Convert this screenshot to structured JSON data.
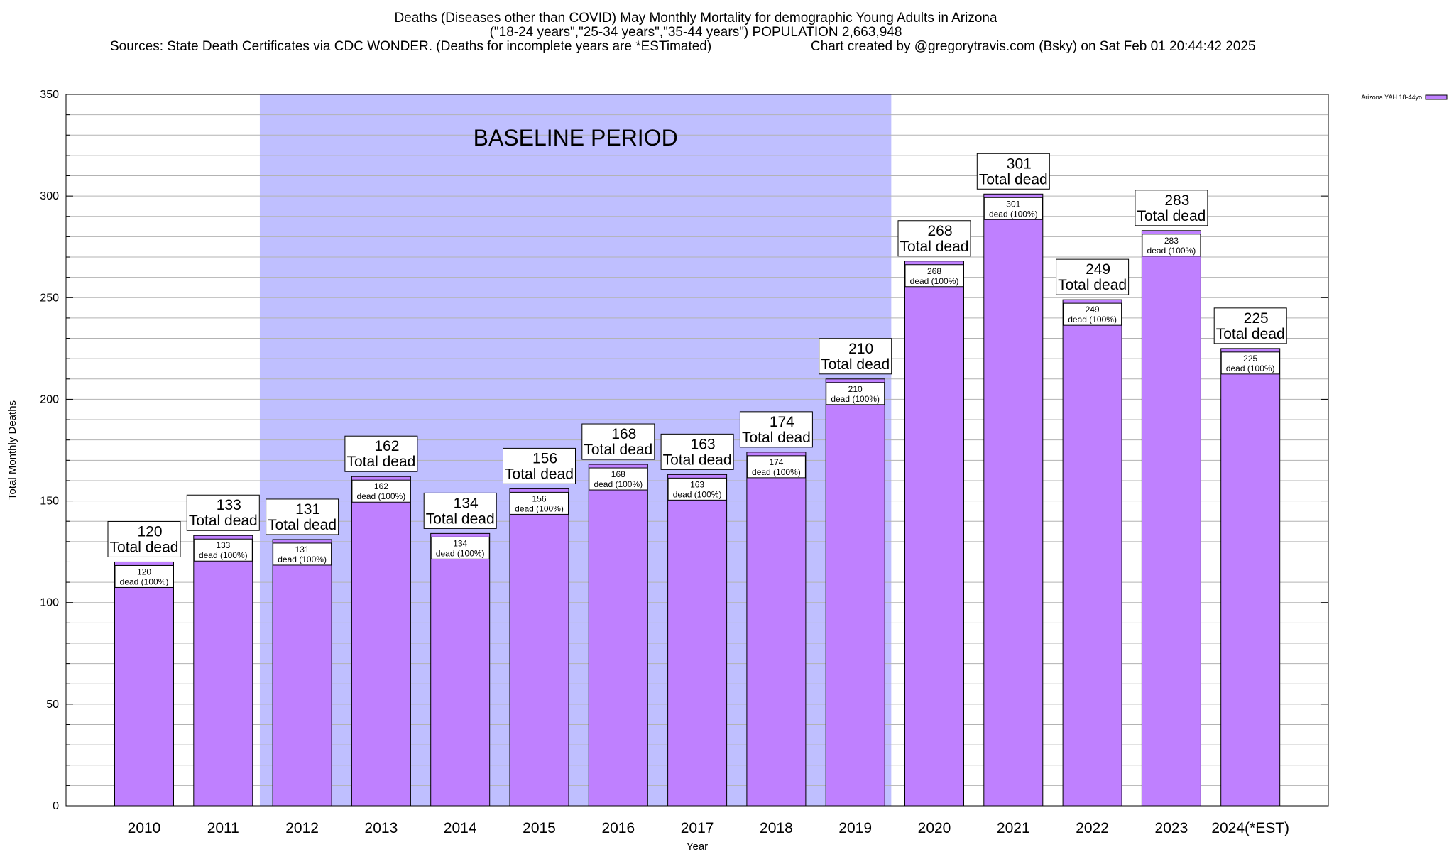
{
  "header": {
    "title_line1": "Deaths (Diseases other than COVID) May Monthly Mortality for demographic Young Adults in Arizona",
    "title_line2": "(\"18-24 years\",\"25-34 years\",\"35-44 years\") POPULATION 2,663,948",
    "title_line3_left": "Sources: State Death Certificates via CDC WONDER. (Deaths for incomplete years are *ESTimated)",
    "title_line3_right": "Chart created by @gregorytravis.com (Bsky) on Sat Feb 01 20:44:42 2025"
  },
  "chart_data": {
    "type": "bar",
    "xlabel": "Year",
    "ylabel": "Total Monthly Deaths",
    "ylim": [
      0,
      350
    ],
    "y_ticks": [
      0,
      50,
      100,
      150,
      200,
      250,
      300,
      350
    ],
    "minor_grid_step": 10,
    "grid": true,
    "categories": [
      "2010",
      "2011",
      "2012",
      "2013",
      "2014",
      "2015",
      "2016",
      "2017",
      "2018",
      "2019",
      "2020",
      "2021",
      "2022",
      "2023",
      "2024(*EST)"
    ],
    "series": [
      {
        "name": "Arizona YAH 18-44yo",
        "color": "#bf80ff",
        "values": [
          120,
          133,
          131,
          162,
          134,
          156,
          168,
          163,
          174,
          210,
          268,
          301,
          249,
          283,
          225
        ]
      }
    ],
    "bar_top_labels": [
      "120",
      "133",
      "131",
      "162",
      "134",
      "156",
      "168",
      "163",
      "174",
      "210",
      "268",
      "301",
      "249",
      "283",
      "225"
    ],
    "total_label_text": "Total dead",
    "inner_labels": [
      "120",
      "133",
      "131",
      "162",
      "134",
      "156",
      "168",
      "163",
      "174",
      "210",
      "268",
      "301",
      "249",
      "283",
      "225"
    ],
    "inner_label_text": "dead (100%)",
    "baseline_period": {
      "label": "BASELINE PERIOD",
      "from_category": "2012",
      "to_category": "2019",
      "color": "#bfbfff"
    },
    "legend": {
      "position": "top-right",
      "entries": [
        "Arizona YAH 18-44yo"
      ]
    }
  }
}
